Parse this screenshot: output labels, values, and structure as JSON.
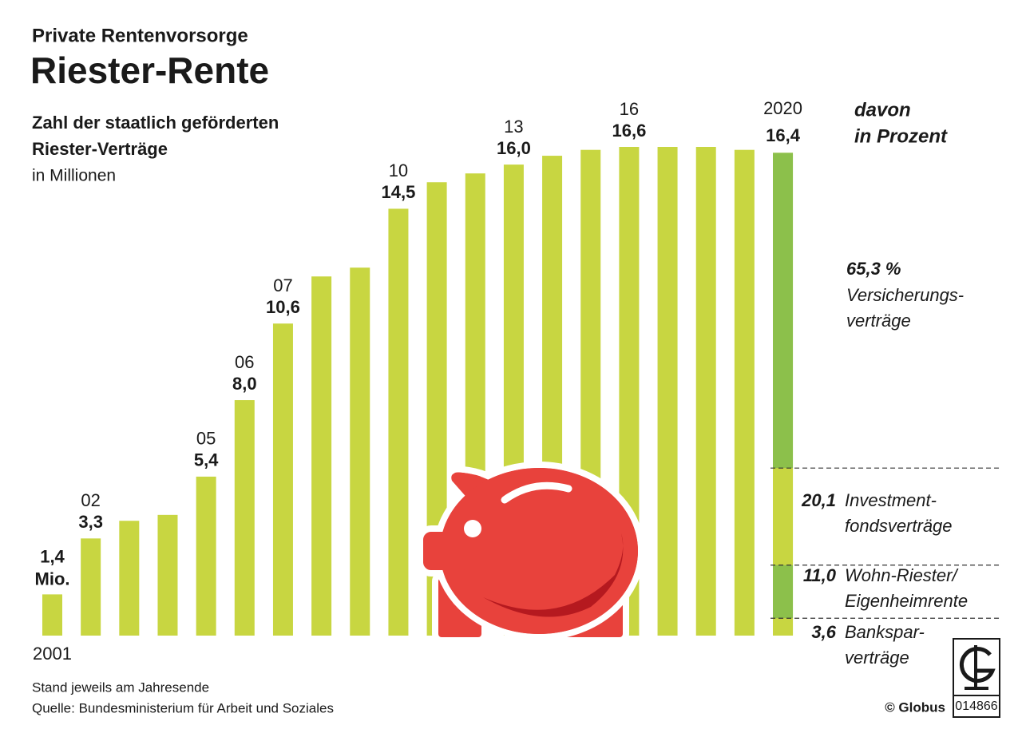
{
  "header": {
    "kicker": "Private Rentenvorsorge",
    "title": "Riester-Rente"
  },
  "chart_data": {
    "type": "bar",
    "subtitle_lines": [
      "Zahl der staatlich geförderten",
      "Riester-Verträge"
    ],
    "unit": "in Millionen",
    "categories": [
      "2001",
      "02",
      null,
      null,
      "05",
      "06",
      "07",
      null,
      null,
      "10",
      null,
      null,
      "13",
      null,
      null,
      "16",
      null,
      null,
      null,
      "2020"
    ],
    "values": [
      1.4,
      3.3,
      3.9,
      4.1,
      5.4,
      8.0,
      10.6,
      12.2,
      12.5,
      14.5,
      15.4,
      15.7,
      16.0,
      16.3,
      16.5,
      16.6,
      16.6,
      16.6,
      16.5,
      16.4
    ],
    "value_labels": [
      "1,4 Mio.",
      "3,3",
      null,
      null,
      "5,4",
      "8,0",
      "10,6",
      null,
      null,
      "14,5",
      null,
      null,
      "16,0",
      null,
      null,
      "16,6",
      null,
      null,
      null,
      "16,4"
    ],
    "color": "#c8d641",
    "breakdown": {
      "title_lines": [
        "davon",
        "in Prozent"
      ],
      "segments": [
        {
          "value": 65.3,
          "label": "65,3 %",
          "name_lines": [
            "Versicherungs-",
            "verträge"
          ],
          "color": "#8cc04b"
        },
        {
          "value": 20.1,
          "label": "20,1",
          "name_lines": [
            "Investment-",
            "fondsverträge"
          ],
          "color": "#c8d641"
        },
        {
          "value": 11.0,
          "label": "11,0",
          "name_lines": [
            "Wohn-Riester/",
            "Eigenheimrente"
          ],
          "color": "#8cc04b"
        },
        {
          "value": 3.6,
          "label": "3,6",
          "name_lines": [
            "Bankspar-",
            "verträge"
          ],
          "color": "#c8d641"
        }
      ]
    }
  },
  "footer": {
    "notes": [
      "Stand jeweils am Jahresende",
      "Quelle: Bundesministerium für Arbeit und Soziales"
    ],
    "credit": "© Globus",
    "code": "014866"
  }
}
